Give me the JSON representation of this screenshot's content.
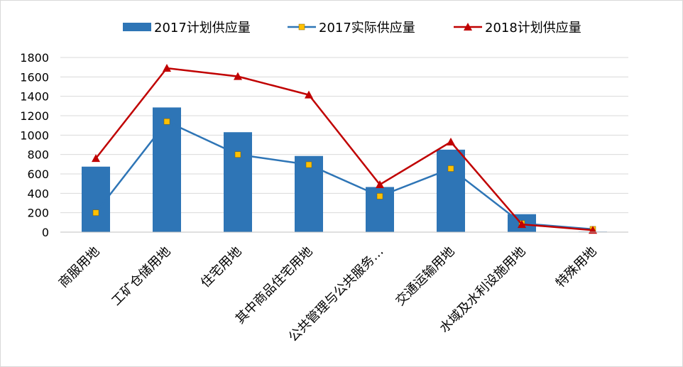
{
  "chart_data": {
    "type": "bar",
    "categories": [
      "商服用地",
      "工矿仓储用地",
      "住宅用地",
      "其中商品住宅用地",
      "公共管理与公共服务…",
      "交通运输用地",
      "水域及水利设施用地",
      "特殊用地"
    ],
    "series": [
      {
        "name": "2017计划供应量",
        "kind": "bar",
        "color": "#2E75B6",
        "values": [
          675,
          1285,
          1030,
          785,
          465,
          850,
          185,
          5
        ]
      },
      {
        "name": "2017实际供应量",
        "kind": "line",
        "color": "#2E75B6",
        "marker_color": "#FFC000",
        "values": [
          200,
          1140,
          800,
          695,
          370,
          655,
          90,
          30
        ]
      },
      {
        "name": "2018计划供应量",
        "kind": "line",
        "color": "#C00000",
        "values": [
          760,
          1690,
          1605,
          1415,
          490,
          930,
          80,
          20
        ]
      }
    ],
    "ylim": [
      0,
      1800
    ],
    "yticks": [
      "0",
      "200",
      "400",
      "600",
      "800",
      "1000",
      "1200",
      "1400",
      "1600",
      "1800"
    ],
    "grid": true,
    "legend_position": "top"
  }
}
